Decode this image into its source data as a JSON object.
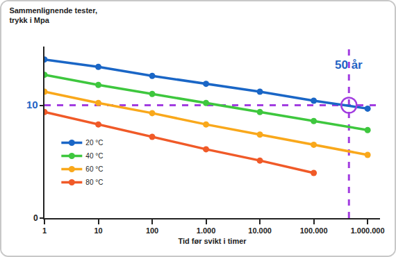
{
  "chart_data": {
    "type": "line",
    "title": "Sammenlignende tester,\ntrykk i Mpa",
    "xlabel": "Tid før svikt i timer",
    "x": [
      1,
      10,
      100,
      1000,
      10000,
      100000,
      1000000
    ],
    "series": [
      {
        "name": "20 °C",
        "color": "#1a66c6",
        "values": [
          14.05,
          13.4,
          12.6,
          11.9,
          11.2,
          10.4,
          9.7
        ]
      },
      {
        "name": "40 °C",
        "color": "#3ec73e",
        "values": [
          12.7,
          11.8,
          11.0,
          10.2,
          9.4,
          8.6,
          7.8
        ]
      },
      {
        "name": "60 °C",
        "color": "#f9a81b",
        "values": [
          11.2,
          10.2,
          9.3,
          8.3,
          7.4,
          6.5,
          5.6
        ]
      },
      {
        "name": "80 °C",
        "color": "#f05a28",
        "values": [
          9.4,
          8.3,
          7.2,
          6.1,
          5.1,
          4.0,
          null
        ]
      }
    ],
    "marker": "circle",
    "log": "x",
    "xlim": [
      1,
      1700000
    ],
    "xticks": [
      1,
      10,
      100,
      {
        "value": 1000,
        "label": "1.000"
      },
      {
        "value": 10000,
        "label": "10.000"
      },
      {
        "value": 100000,
        "label": "100.000"
      },
      {
        "value": 1000000,
        "label": "1.000.000"
      }
    ],
    "ylim": [
      0,
      15.2
    ],
    "yticks": [
      0,
      10
    ],
    "grid": false,
    "legend": "lower left",
    "reference_lines": {
      "x": 450000,
      "y": 10,
      "color": "#a23de0",
      "line_style": "dash",
      "marker": "circle"
    },
    "annotations": [
      {
        "text": "50 år",
        "x": 450000,
        "y": 13.6,
        "color": "#1f63c4"
      }
    ]
  }
}
